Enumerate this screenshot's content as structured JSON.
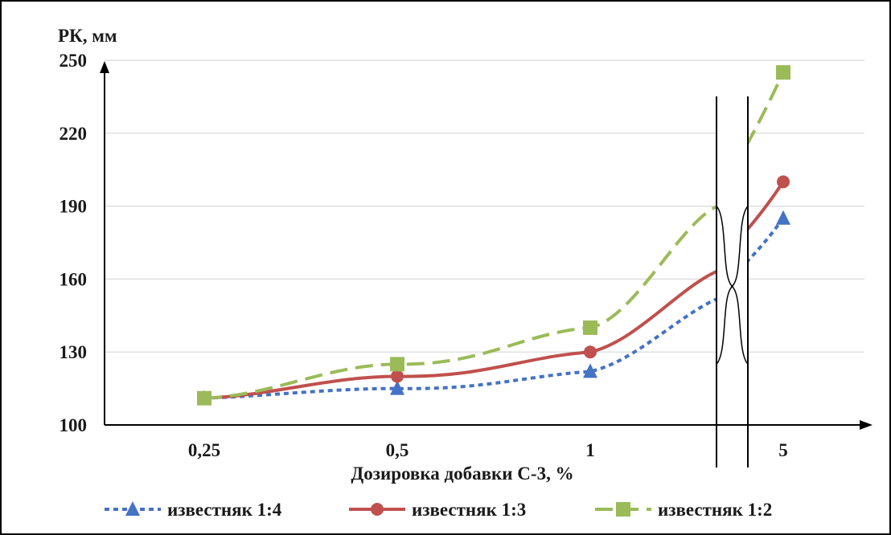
{
  "chart_data": {
    "type": "line",
    "categories": [
      "0,25",
      "0,5",
      "1",
      "5"
    ],
    "series": [
      {
        "name": "известняк 1:4",
        "values": [
          111,
          115,
          122,
          185
        ],
        "color": "#4472C4",
        "marker": "triangle",
        "line_style": "dotted"
      },
      {
        "name": "известняк 1:3",
        "values": [
          111,
          120,
          130,
          200
        ],
        "color": "#C0504D",
        "marker": "circle",
        "line_style": "solid"
      },
      {
        "name": "известняк 1:2",
        "values": [
          111,
          125,
          140,
          245
        ],
        "color": "#9BBB59",
        "marker": "square",
        "line_style": "dashed"
      }
    ],
    "ylabel": "РК, мм",
    "xlabel": "Дозировка добавки С-3, %",
    "yticks": [
      "100",
      "130",
      "160",
      "190",
      "220",
      "250"
    ],
    "ylim": [
      100,
      250
    ],
    "grid": true,
    "axis_break": "between 1 and 5",
    "legend_position": "bottom"
  }
}
